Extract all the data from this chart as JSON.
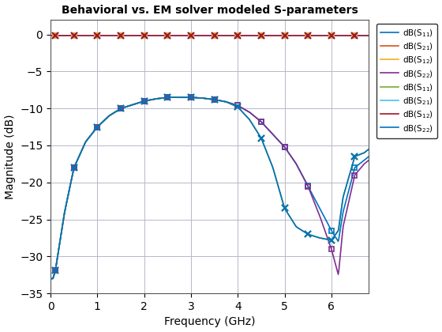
{
  "title": "Behavioral vs. EM solver modeled S-parameters",
  "xlabel": "Frequency (GHz)",
  "ylabel": "Magnitude (dB)",
  "xlim": [
    0,
    6.8
  ],
  "ylim": [
    -35,
    2
  ],
  "yticks": [
    0,
    -5,
    -10,
    -15,
    -20,
    -25,
    -30,
    -35
  ],
  "xticks": [
    0,
    1,
    2,
    3,
    4,
    5,
    6
  ],
  "colors_beh": [
    "#0072BD",
    "#D95319",
    "#EDB120",
    "#7E2F8E"
  ],
  "colors_em": [
    "#77AC30",
    "#4DBEEE",
    "#A2142F",
    "#0072BD"
  ],
  "labels_beh": [
    "dB(S$_{11}$)",
    "dB(S$_{21}$)",
    "dB(S$_{12}$)",
    "dB(S$_{22}$)"
  ],
  "labels_em": [
    "dB(S$_{11}$)",
    "dB(S$_{21}$)",
    "dB(S$_{12}$)",
    "dB(S$_{22}$)"
  ],
  "background_color": "#ffffff",
  "grid_color": "#b8b8c8"
}
